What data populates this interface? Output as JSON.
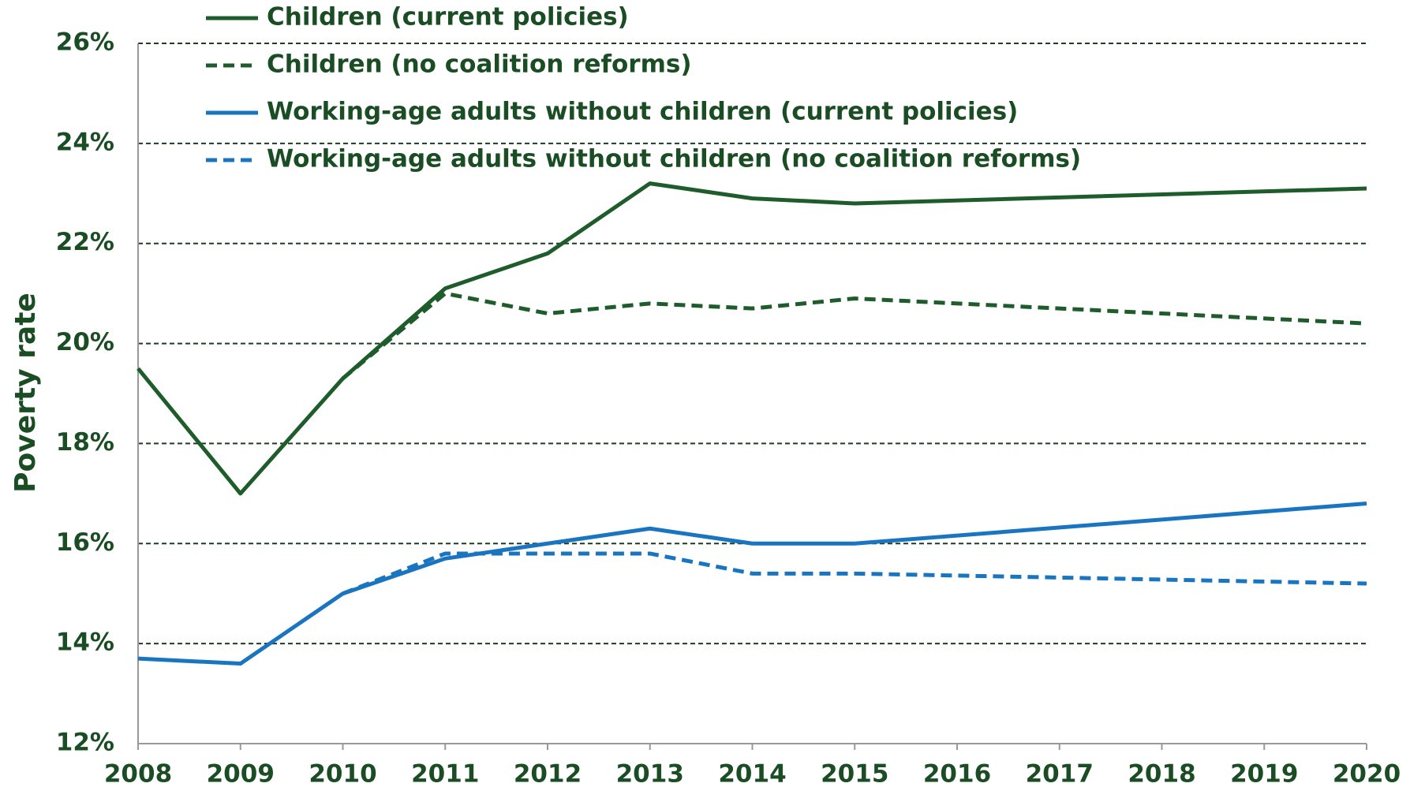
{
  "chart_data": {
    "type": "line",
    "y_label": "Poverty rate",
    "x": [
      2008,
      2009,
      2010,
      2011,
      2012,
      2013,
      2014,
      2015,
      2020
    ],
    "series": [
      {
        "name": "Children (current policies)",
        "color": "#1e5c2c",
        "dash": false,
        "values": [
          19.5,
          17.0,
          19.3,
          21.1,
          21.8,
          23.2,
          22.9,
          22.8,
          23.1
        ]
      },
      {
        "name": "Children (no coalition reforms)",
        "color": "#1e5c2c",
        "dash": true,
        "values": [
          null,
          null,
          19.3,
          21.0,
          20.6,
          20.8,
          20.7,
          20.9,
          20.4
        ]
      },
      {
        "name": "Working-age adults without children (current policies)",
        "color": "#1a75c1",
        "dash": false,
        "values": [
          13.7,
          13.6,
          15.0,
          15.7,
          16.0,
          16.3,
          16.0,
          16.0,
          16.8
        ]
      },
      {
        "name": "Working-age adults without children (no coalition reforms)",
        "color": "#1a75c1",
        "dash": true,
        "values": [
          null,
          null,
          15.0,
          15.8,
          15.8,
          15.8,
          15.4,
          15.4,
          15.2
        ]
      }
    ],
    "xlim": [
      2008,
      2020
    ],
    "xticks": [
      2008,
      2009,
      2010,
      2011,
      2012,
      2013,
      2014,
      2015,
      2016,
      2017,
      2018,
      2019,
      2020
    ],
    "ylim": [
      12,
      26
    ],
    "yticks": [
      {
        "value": 12,
        "label": "12%"
      },
      {
        "value": 14,
        "label": "14%"
      },
      {
        "value": 16,
        "label": "16%"
      },
      {
        "value": 18,
        "label": "18%"
      },
      {
        "value": 20,
        "label": "20%"
      },
      {
        "value": 22,
        "label": "22%"
      },
      {
        "value": 24,
        "label": "24%"
      },
      {
        "value": 26,
        "label": "26%"
      }
    ],
    "grid": true
  }
}
